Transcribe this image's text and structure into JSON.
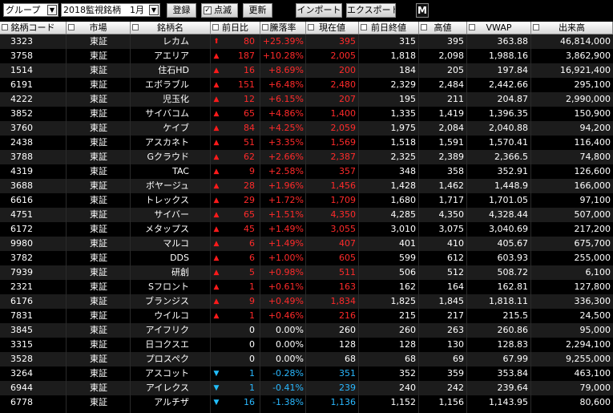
{
  "toolbar": {
    "group_select": "グループ",
    "list_select": "2018監視銘柄　1月",
    "register_label": "登録",
    "blink_label": "点滅",
    "blink_checked": "✓",
    "update_label": "更新",
    "import_label": "インポート",
    "export_label": "エクスポート",
    "m_label": "M"
  },
  "columns": {
    "code": "銘柄コード",
    "market": "市場",
    "name": "銘柄名",
    "prev_change": "前日比",
    "rate": "騰落率",
    "price": "現在値",
    "prev_close": "前日終値",
    "high": "高値",
    "vwap": "VWAP",
    "volume": "出来高"
  },
  "rows": [
    {
      "code": "3323",
      "market": "東証",
      "name": "レカム",
      "dir": "up-strong",
      "arrow": "⬆",
      "change": "80",
      "rate": "+25.39%",
      "price": "395",
      "prev": "315",
      "high": "395",
      "vwap": "363.88",
      "vol": "46,814,000"
    },
    {
      "code": "3758",
      "market": "東証",
      "name": "アエリア",
      "dir": "up",
      "arrow": "▲",
      "change": "187",
      "rate": "+10.28%",
      "price": "2,005",
      "prev": "1,818",
      "high": "2,098",
      "vwap": "1,988.16",
      "vol": "3,862,900"
    },
    {
      "code": "1514",
      "market": "東証",
      "name": "住石HD",
      "dir": "up",
      "arrow": "▲",
      "change": "16",
      "rate": "+8.69%",
      "price": "200",
      "prev": "184",
      "high": "205",
      "vwap": "197.84",
      "vol": "16,921,400"
    },
    {
      "code": "6191",
      "market": "東証",
      "name": "エボラブル",
      "dir": "up",
      "arrow": "▲",
      "change": "151",
      "rate": "+6.48%",
      "price": "2,480",
      "prev": "2,329",
      "high": "2,484",
      "vwap": "2,442.66",
      "vol": "295,100"
    },
    {
      "code": "4222",
      "market": "東証",
      "name": "児玉化",
      "dir": "up",
      "arrow": "▲",
      "change": "12",
      "rate": "+6.15%",
      "price": "207",
      "prev": "195",
      "high": "211",
      "vwap": "204.87",
      "vol": "2,990,000"
    },
    {
      "code": "3852",
      "market": "東証",
      "name": "サイバコム",
      "dir": "up",
      "arrow": "▲",
      "change": "65",
      "rate": "+4.86%",
      "price": "1,400",
      "prev": "1,335",
      "high": "1,419",
      "vwap": "1,396.35",
      "vol": "150,900"
    },
    {
      "code": "3760",
      "market": "東証",
      "name": "ケイブ",
      "dir": "up",
      "arrow": "▲",
      "change": "84",
      "rate": "+4.25%",
      "price": "2,059",
      "prev": "1,975",
      "high": "2,084",
      "vwap": "2,040.88",
      "vol": "94,200"
    },
    {
      "code": "2438",
      "market": "東証",
      "name": "アスカネト",
      "dir": "up",
      "arrow": "▲",
      "change": "51",
      "rate": "+3.35%",
      "price": "1,569",
      "prev": "1,518",
      "high": "1,591",
      "vwap": "1,570.41",
      "vol": "116,400"
    },
    {
      "code": "3788",
      "market": "東証",
      "name": "Gクラウド",
      "dir": "up",
      "arrow": "▲",
      "change": "62",
      "rate": "+2.66%",
      "price": "2,387",
      "prev": "2,325",
      "high": "2,389",
      "vwap": "2,366.5",
      "vol": "74,800"
    },
    {
      "code": "4319",
      "market": "東証",
      "name": "TAC",
      "dir": "up",
      "arrow": "▲",
      "change": "9",
      "rate": "+2.58%",
      "price": "357",
      "prev": "348",
      "high": "358",
      "vwap": "352.91",
      "vol": "126,600"
    },
    {
      "code": "3688",
      "market": "東証",
      "name": "ボヤージュ",
      "dir": "up",
      "arrow": "▲",
      "change": "28",
      "rate": "+1.96%",
      "price": "1,456",
      "prev": "1,428",
      "high": "1,462",
      "vwap": "1,448.9",
      "vol": "166,000"
    },
    {
      "code": "6616",
      "market": "東証",
      "name": "トレックス",
      "dir": "up",
      "arrow": "▲",
      "change": "29",
      "rate": "+1.72%",
      "price": "1,709",
      "prev": "1,680",
      "high": "1,717",
      "vwap": "1,701.05",
      "vol": "97,100"
    },
    {
      "code": "4751",
      "market": "東証",
      "name": "サイバー",
      "dir": "up",
      "arrow": "▲",
      "change": "65",
      "rate": "+1.51%",
      "price": "4,350",
      "prev": "4,285",
      "high": "4,350",
      "vwap": "4,328.44",
      "vol": "507,000"
    },
    {
      "code": "6172",
      "market": "東証",
      "name": "メタップス",
      "dir": "up",
      "arrow": "▲",
      "change": "45",
      "rate": "+1.49%",
      "price": "3,055",
      "prev": "3,010",
      "high": "3,075",
      "vwap": "3,040.69",
      "vol": "217,200"
    },
    {
      "code": "9980",
      "market": "東証",
      "name": "マルコ",
      "dir": "up",
      "arrow": "▲",
      "change": "6",
      "rate": "+1.49%",
      "price": "407",
      "prev": "401",
      "high": "410",
      "vwap": "405.67",
      "vol": "675,700"
    },
    {
      "code": "3782",
      "market": "東証",
      "name": "DDS",
      "dir": "up",
      "arrow": "▲",
      "change": "6",
      "rate": "+1.00%",
      "price": "605",
      "prev": "599",
      "high": "612",
      "vwap": "603.93",
      "vol": "255,000"
    },
    {
      "code": "7939",
      "market": "東証",
      "name": "研創",
      "dir": "up",
      "arrow": "▲",
      "change": "5",
      "rate": "+0.98%",
      "price": "511",
      "prev": "506",
      "high": "512",
      "vwap": "508.72",
      "vol": "6,100"
    },
    {
      "code": "2321",
      "market": "東証",
      "name": "Sフロント",
      "dir": "up",
      "arrow": "▲",
      "change": "1",
      "rate": "+0.61%",
      "price": "163",
      "prev": "162",
      "high": "164",
      "vwap": "162.81",
      "vol": "127,800"
    },
    {
      "code": "6176",
      "market": "東証",
      "name": "ブランジス",
      "dir": "up",
      "arrow": "▲",
      "change": "9",
      "rate": "+0.49%",
      "price": "1,834",
      "prev": "1,825",
      "high": "1,845",
      "vwap": "1,818.11",
      "vol": "336,300"
    },
    {
      "code": "7831",
      "market": "東証",
      "name": "ウイルコ",
      "dir": "up",
      "arrow": "▲",
      "change": "1",
      "rate": "+0.46%",
      "price": "216",
      "prev": "215",
      "high": "217",
      "vwap": "215.5",
      "vol": "24,500"
    },
    {
      "code": "3845",
      "market": "東証",
      "name": "アイフリク",
      "dir": "flat",
      "arrow": "",
      "change": "0",
      "rate": "0.00%",
      "price": "260",
      "prev": "260",
      "high": "263",
      "vwap": "260.86",
      "vol": "95,000"
    },
    {
      "code": "3315",
      "market": "東証",
      "name": "日コクスエ",
      "dir": "flat",
      "arrow": "",
      "change": "0",
      "rate": "0.00%",
      "price": "128",
      "prev": "128",
      "high": "130",
      "vwap": "128.83",
      "vol": "2,294,100"
    },
    {
      "code": "3528",
      "market": "東証",
      "name": "プロスペク",
      "dir": "flat",
      "arrow": "",
      "change": "0",
      "rate": "0.00%",
      "price": "68",
      "prev": "68",
      "high": "69",
      "vwap": "67.99",
      "vol": "9,255,000"
    },
    {
      "code": "3264",
      "market": "東証",
      "name": "アスコット",
      "dir": "dn",
      "arrow": "▼",
      "change": "1",
      "rate": "-0.28%",
      "price": "351",
      "prev": "352",
      "high": "359",
      "vwap": "353.84",
      "vol": "463,100"
    },
    {
      "code": "6944",
      "market": "東証",
      "name": "アイレクス",
      "dir": "dn",
      "arrow": "▼",
      "change": "1",
      "rate": "-0.41%",
      "price": "239",
      "prev": "240",
      "high": "242",
      "vwap": "239.64",
      "vol": "79,000"
    },
    {
      "code": "6778",
      "market": "東証",
      "name": "アルチザ",
      "dir": "dn",
      "arrow": "▼",
      "change": "16",
      "rate": "-1.38%",
      "price": "1,136",
      "prev": "1,152",
      "high": "1,156",
      "vwap": "1,143.95",
      "vol": "80,600"
    }
  ],
  "colors": {
    "up": "#ff2a2a",
    "down": "#2ab8ff",
    "flat": "#ffffff",
    "row_even": "#1c1c1c",
    "row_odd": "#000000"
  }
}
